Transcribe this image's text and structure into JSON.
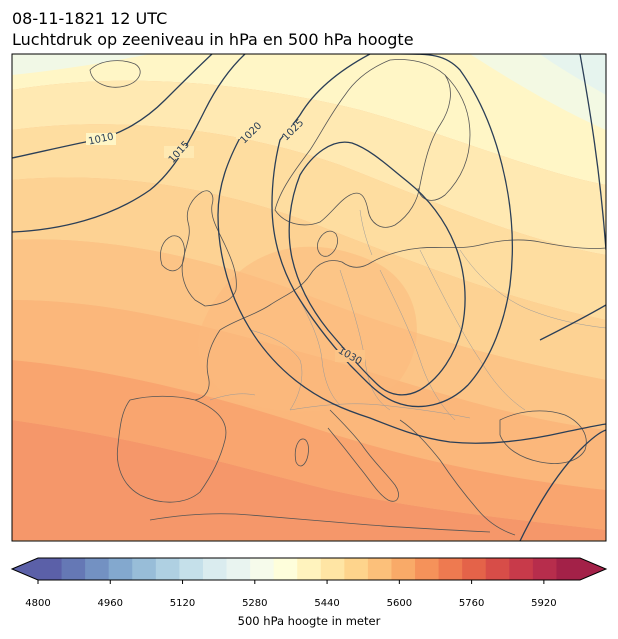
{
  "title": {
    "line1": "08-11-1821 12 UTC",
    "line2": "Luchtdruk op zeeniveau in hPa en 500 hPa hoogte"
  },
  "map": {
    "region": "Europe",
    "fill_field": "500 hPa geopotential height",
    "contour_field": "sea level pressure",
    "isobar_labels": [
      "1010",
      "1015",
      "1020",
      "1025",
      "1030"
    ],
    "isobar_color": "#2b3f57",
    "land_border_color": "#555555"
  },
  "colorbar": {
    "label": "500 hPa hoogte in meter",
    "ticks": [
      "4800",
      "4960",
      "5120",
      "5280",
      "5440",
      "5600",
      "5760",
      "5920"
    ],
    "min": 4800,
    "max": 6000,
    "step": 40,
    "colormap": "RdYlBu_r",
    "colors": [
      "#5b60a8",
      "#6578b5",
      "#7391c2",
      "#83a8ce",
      "#98bdd8",
      "#afd0e2",
      "#c5e0ea",
      "#daecef",
      "#e9f4f0",
      "#f6fbeb",
      "#fefedb",
      "#fff3be",
      "#ffe5a4",
      "#fed48c",
      "#fcc07a",
      "#f9aa68",
      "#f5925a",
      "#ee7a50",
      "#e46349",
      "#d74d48",
      "#c83a4a",
      "#b72d4c",
      "#a32148"
    ]
  }
}
